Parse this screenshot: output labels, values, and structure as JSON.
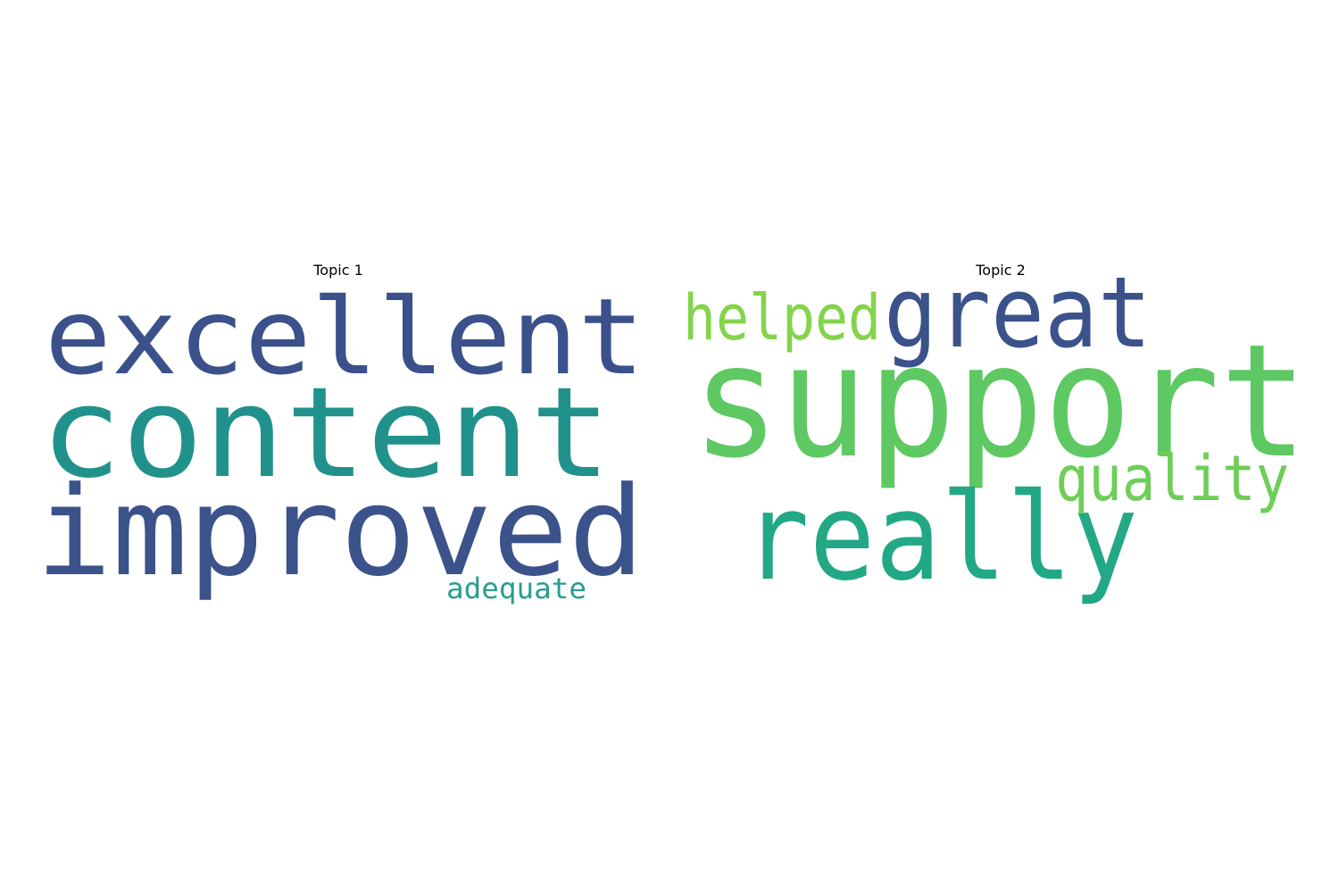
{
  "chart_data": {
    "type": "wordcloud",
    "panels": [
      {
        "title": "Topic 1",
        "words": [
          {
            "text": "excellent",
            "weight": 0.86,
            "color": "#3b518b"
          },
          {
            "text": "content",
            "weight": 1.0,
            "color": "#21918c"
          },
          {
            "text": "improved",
            "weight": 0.95,
            "color": "#3b528b"
          },
          {
            "text": "adequate",
            "weight": 0.25,
            "color": "#2a9d8f"
          }
        ]
      },
      {
        "title": "Topic 2",
        "words": [
          {
            "text": "support",
            "weight": 1.0,
            "color": "#5ec962"
          },
          {
            "text": "great",
            "weight": 0.65,
            "color": "#3b528b"
          },
          {
            "text": "helped",
            "weight": 0.48,
            "color": "#84d44b"
          },
          {
            "text": "really",
            "weight": 0.85,
            "color": "#22a884"
          },
          {
            "text": "quality",
            "weight": 0.48,
            "color": "#6ece58"
          }
        ]
      }
    ]
  }
}
